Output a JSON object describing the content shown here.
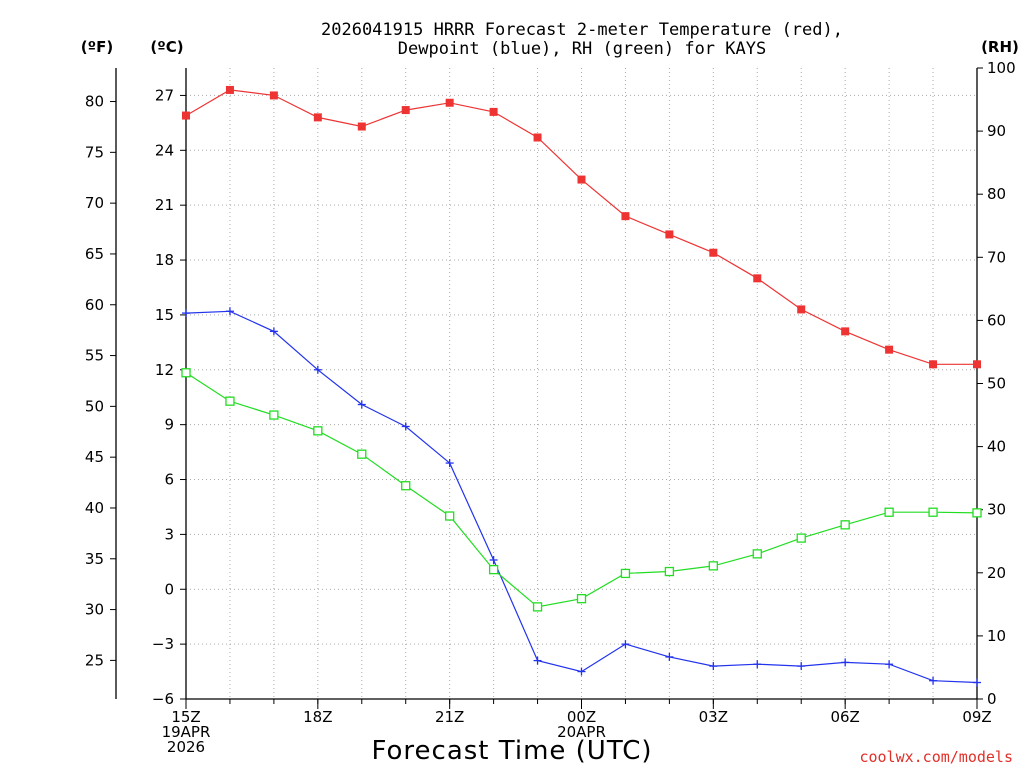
{
  "chart_data": {
    "type": "line",
    "title_line1": "2026041915 HRRR Forecast 2-meter Temperature (red),",
    "title_line2": "Dewpoint (blue), RH (green) for KAYS",
    "unit_labels": {
      "fahrenheit": "(ºF)",
      "celsius": "(ºC)",
      "rh": "(RH)"
    },
    "xlabel": "Forecast Time (UTC)",
    "credit": "coolwx.com/models",
    "colors": {
      "temperature": "#ee3333",
      "dewpoint": "#2233ee",
      "rh": "#22dd22",
      "grid": "#aaaaaa"
    },
    "x_hours": [
      0,
      1,
      2,
      3,
      4,
      5,
      6,
      7,
      8,
      9,
      10,
      11,
      12,
      13,
      14,
      15,
      16,
      17,
      18
    ],
    "x_ticks": [
      {
        "hour": 0,
        "lines": [
          "15Z",
          "19APR",
          "2026"
        ]
      },
      {
        "hour": 3,
        "lines": [
          "18Z"
        ]
      },
      {
        "hour": 6,
        "lines": [
          "21Z"
        ]
      },
      {
        "hour": 9,
        "lines": [
          "00Z",
          "20APR"
        ]
      },
      {
        "hour": 12,
        "lines": [
          "03Z"
        ]
      },
      {
        "hour": 15,
        "lines": [
          "06Z"
        ]
      },
      {
        "hour": 18,
        "lines": [
          "09Z"
        ]
      }
    ],
    "celsius_range": [
      -6,
      28.5
    ],
    "celsius_ticks": [
      "-6",
      "-3",
      "0",
      "3",
      "6",
      "9",
      "12",
      "15",
      "18",
      "21",
      "24",
      "27"
    ],
    "fahrenheit_ticks": [
      "25",
      "30",
      "35",
      "40",
      "45",
      "50",
      "55",
      "60",
      "65",
      "70",
      "75",
      "80"
    ],
    "rh_range": [
      0,
      100
    ],
    "rh_ticks": [
      "0",
      "10",
      "20",
      "30",
      "40",
      "50",
      "60",
      "70",
      "80",
      "90",
      "100"
    ],
    "series": [
      {
        "name": "Temperature",
        "axis": "celsius",
        "marker": "filled-square",
        "values": [
          25.9,
          27.3,
          27.0,
          25.8,
          25.3,
          26.2,
          26.6,
          26.1,
          24.7,
          22.4,
          20.4,
          19.4,
          18.4,
          17.0,
          15.3,
          14.1,
          13.1,
          12.3,
          12.3
        ]
      },
      {
        "name": "Dewpoint",
        "axis": "celsius",
        "marker": "plus",
        "values": [
          15.1,
          15.2,
          14.1,
          12.0,
          10.1,
          8.9,
          6.9,
          1.6,
          -3.9,
          -4.5,
          -3.0,
          -3.7,
          -4.2,
          -4.1,
          -4.2,
          -4.0,
          -4.1,
          -5.0,
          -5.1
        ]
      },
      {
        "name": "RH",
        "axis": "rh",
        "marker": "open-square",
        "values": [
          51.7,
          47.2,
          45.0,
          42.5,
          38.8,
          33.8,
          29.0,
          20.5,
          14.6,
          15.9,
          19.9,
          20.2,
          21.1,
          23.0,
          25.5,
          27.6,
          29.6,
          29.6,
          29.5
        ]
      }
    ]
  }
}
